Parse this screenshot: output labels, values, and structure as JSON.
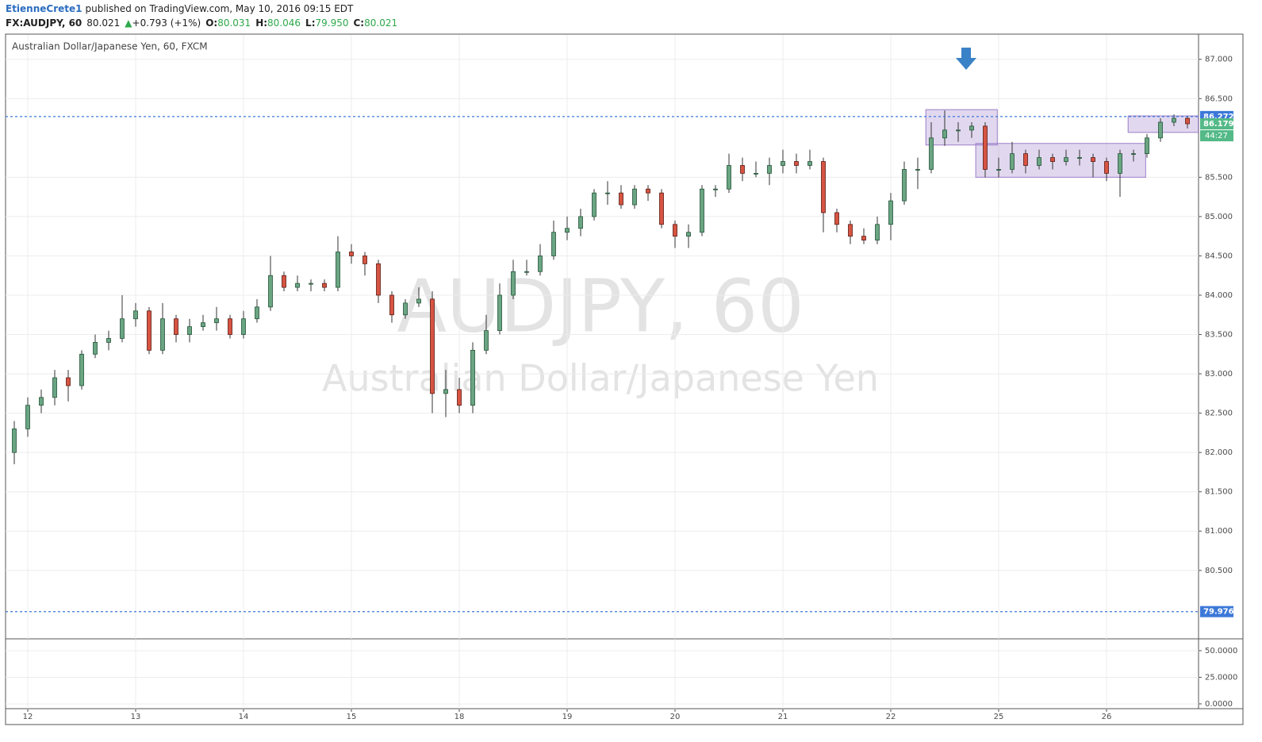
{
  "header": {
    "author": "EtienneCrete1",
    "published": "published on TradingView.com, May 10, 2016 09:15 EDT"
  },
  "symbol_bar": {
    "symbol": "FX:AUDJPY, 60",
    "last": "80.021",
    "change_icon": "▲",
    "change": "+0.793 (+1%)",
    "open_label": "O:",
    "open": "80.031",
    "high_label": "H:",
    "high": "80.046",
    "low_label": "L:",
    "low": "79.950",
    "close_label": "C:",
    "close": "80.021"
  },
  "chart_data": [
    {
      "type": "candlestick",
      "title": "Australian Dollar/Japanese Yen, 60, FXCM",
      "watermark": "AUDJPY, 60",
      "watermark_subtitle": "Australian Dollar/Japanese Yen",
      "categories": [
        null,
        "12",
        null,
        null,
        null,
        null,
        null,
        null,
        null,
        "13",
        null,
        null,
        null,
        null,
        null,
        null,
        null,
        "14",
        null,
        null,
        null,
        null,
        null,
        null,
        null,
        "15",
        null,
        null,
        null,
        null,
        null,
        null,
        null,
        "18",
        null,
        null,
        null,
        null,
        null,
        null,
        null,
        "19",
        null,
        null,
        null,
        null,
        null,
        null,
        null,
        "20",
        null,
        null,
        null,
        null,
        null,
        null,
        null,
        "21",
        null,
        null,
        null,
        null,
        null,
        null,
        null,
        "22",
        null,
        null,
        null,
        null,
        null,
        null,
        null,
        "25",
        null,
        null,
        null,
        null,
        null,
        null,
        null,
        "26",
        null,
        null,
        null,
        null,
        null,
        null
      ],
      "series": [
        {
          "open": [
            82.0,
            82.3,
            82.6,
            82.7,
            82.95,
            82.85,
            83.25,
            83.4,
            83.45,
            83.7,
            83.8,
            83.3,
            83.7,
            83.5,
            83.6,
            83.65,
            83.7,
            83.5,
            83.7,
            83.85,
            84.25,
            84.1,
            84.15,
            84.15,
            84.1,
            84.55,
            84.5,
            84.4,
            84.0,
            83.75,
            83.9,
            83.95,
            82.75,
            82.8,
            82.6,
            83.3,
            83.55,
            84.0,
            84.3,
            84.3,
            84.5,
            84.8,
            84.85,
            85.0,
            85.3,
            85.3,
            85.15,
            85.35,
            85.3,
            84.9,
            84.75,
            84.8,
            85.35,
            85.35,
            85.65,
            85.55,
            85.55,
            85.65,
            85.7,
            85.65,
            85.7,
            85.05,
            84.9,
            84.75,
            84.7,
            84.9,
            85.2,
            85.6,
            85.6,
            86.0,
            86.1,
            86.1,
            86.15,
            85.6,
            85.6,
            85.8,
            85.65,
            85.75,
            85.7,
            85.75,
            85.75,
            85.7,
            85.55,
            85.8,
            85.8,
            86.0,
            86.2,
            86.25
          ],
          "high": [
            82.4,
            82.7,
            82.8,
            83.05,
            83.05,
            83.3,
            83.5,
            83.55,
            84.0,
            83.9,
            83.85,
            83.9,
            83.75,
            83.7,
            83.75,
            83.85,
            83.75,
            83.8,
            83.95,
            84.5,
            84.3,
            84.25,
            84.2,
            84.2,
            84.75,
            84.65,
            84.55,
            84.45,
            84.05,
            83.95,
            84.1,
            84.05,
            83.05,
            82.95,
            83.4,
            83.75,
            84.15,
            84.45,
            84.45,
            84.65,
            84.95,
            85.0,
            85.1,
            85.35,
            85.45,
            85.4,
            85.4,
            85.4,
            85.35,
            84.95,
            84.9,
            85.4,
            85.4,
            85.8,
            85.75,
            85.7,
            85.75,
            85.85,
            85.8,
            85.85,
            85.75,
            85.1,
            84.95,
            84.85,
            85.0,
            85.3,
            85.7,
            85.75,
            86.2,
            86.35,
            86.2,
            86.2,
            86.2,
            85.75,
            85.95,
            85.85,
            85.85,
            85.8,
            85.85,
            85.85,
            85.8,
            85.75,
            85.85,
            85.85,
            86.05,
            86.25,
            86.3,
            86.28
          ],
          "low": [
            81.85,
            82.2,
            82.5,
            82.6,
            82.65,
            82.8,
            83.2,
            83.3,
            83.4,
            83.6,
            83.25,
            83.25,
            83.4,
            83.4,
            83.55,
            83.55,
            83.45,
            83.45,
            83.65,
            83.8,
            84.05,
            84.05,
            84.05,
            84.05,
            84.05,
            84.4,
            84.25,
            83.9,
            83.65,
            83.7,
            83.85,
            82.5,
            82.45,
            82.5,
            82.5,
            83.25,
            83.5,
            83.95,
            84.25,
            84.25,
            84.45,
            84.7,
            84.75,
            84.95,
            85.15,
            85.1,
            85.1,
            85.2,
            84.85,
            84.6,
            84.6,
            84.75,
            85.25,
            85.3,
            85.45,
            85.5,
            85.4,
            85.55,
            85.55,
            85.6,
            84.8,
            84.8,
            84.65,
            84.65,
            84.65,
            84.7,
            85.15,
            85.35,
            85.55,
            85.9,
            85.95,
            86.0,
            85.5,
            85.5,
            85.55,
            85.55,
            85.6,
            85.6,
            85.65,
            85.65,
            85.5,
            85.45,
            85.25,
            85.7,
            85.75,
            85.95,
            86.15,
            86.12
          ],
          "close": [
            82.3,
            82.6,
            82.7,
            82.95,
            82.85,
            83.25,
            83.4,
            83.45,
            83.7,
            83.8,
            83.3,
            83.7,
            83.5,
            83.6,
            83.65,
            83.7,
            83.5,
            83.7,
            83.85,
            84.25,
            84.1,
            84.15,
            84.15,
            84.1,
            84.55,
            84.5,
            84.4,
            84.0,
            83.75,
            83.9,
            83.95,
            82.75,
            82.8,
            82.6,
            83.3,
            83.55,
            84.0,
            84.3,
            84.3,
            84.5,
            84.8,
            84.85,
            85.0,
            85.3,
            85.3,
            85.15,
            85.35,
            85.3,
            84.9,
            84.75,
            84.8,
            85.35,
            85.35,
            85.65,
            85.55,
            85.55,
            85.65,
            85.7,
            85.65,
            85.7,
            85.05,
            84.9,
            84.75,
            84.7,
            84.9,
            85.2,
            85.6,
            85.6,
            86.0,
            86.1,
            86.1,
            86.15,
            85.6,
            85.6,
            85.8,
            85.65,
            85.75,
            85.7,
            85.75,
            85.75,
            85.7,
            85.55,
            85.8,
            85.8,
            86.0,
            86.2,
            86.25,
            86.18
          ]
        }
      ],
      "up_color": "#6ba583",
      "down_color": "#d75442",
      "ylim": [
        79.63,
        87.31
      ],
      "yticks": [
        {
          "value": 87,
          "label": "87.000"
        },
        {
          "value": 86.5,
          "label": "86.500"
        },
        {
          "value": 85.5,
          "label": "85.500"
        },
        {
          "value": 85,
          "label": "85.000"
        },
        {
          "value": 84.5,
          "label": "84.500"
        },
        {
          "value": 84,
          "label": "84.000"
        },
        {
          "value": 83.5,
          "label": "83.500"
        },
        {
          "value": 83,
          "label": "83.000"
        },
        {
          "value": 82.5,
          "label": "82.500"
        },
        {
          "value": 82,
          "label": "82.000"
        },
        {
          "value": 81.5,
          "label": "81.500"
        },
        {
          "value": 81,
          "label": "81.000"
        },
        {
          "value": 80.5,
          "label": "80.500"
        }
      ],
      "grid": true,
      "lines": [
        {
          "value": 86.272,
          "label": "86.272",
          "color": "#3c78d8"
        },
        {
          "value": 79.976,
          "label": "79.976",
          "color": "#3c78d8"
        }
      ],
      "last_price": {
        "value": 86.179,
        "label": "86.179",
        "color": "#53b987"
      },
      "countdown": "44:27",
      "zones": [
        {
          "x": [
            67.6,
            72.9
          ],
          "y": [
            86.36,
            85.91
          ]
        },
        {
          "x": [
            71.3,
            83.9
          ],
          "y": [
            85.93,
            85.5
          ]
        },
        {
          "x": [
            82.6,
            87.8
          ],
          "y": [
            86.28,
            86.07
          ]
        }
      ],
      "zone_color": "#9c7ec9"
    },
    {
      "type": "line",
      "ylim": [
        -4.5,
        60.4
      ],
      "yticks": [
        {
          "value": 50,
          "label": "50.0000"
        },
        {
          "value": 25,
          "label": "25.0000"
        },
        {
          "value": 0,
          "label": "0.0000"
        }
      ],
      "grid": true
    }
  ]
}
